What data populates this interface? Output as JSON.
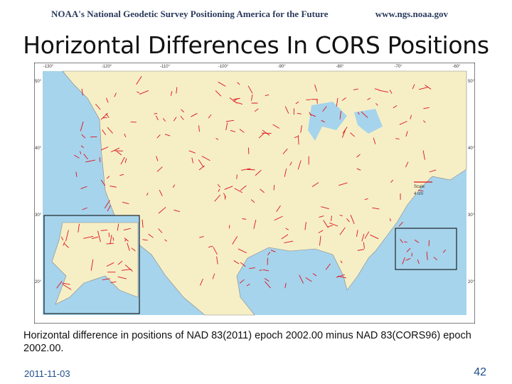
{
  "header": {
    "left": "NOAA's National Geodetic Survey Positioning America for the Future",
    "right": "www.ngs.noaa.gov"
  },
  "title": "Horizontal Differences In CORS Positions",
  "map": {
    "top_labels": [
      "-130°",
      "-120°",
      "-110°",
      "-100°",
      "-90°",
      "-80°",
      "-70°",
      "-60°"
    ],
    "left_labels": [
      "50°",
      "40°",
      "30°",
      "20°"
    ],
    "right_labels": [
      "50°",
      "40°",
      "30°",
      "20°"
    ],
    "scale": {
      "title": "Scale",
      "length": "4 cm"
    }
  },
  "caption": "Horizontal difference in positions of NAD 83(2011) epoch 2002.00 minus NAD 83(CORS96) epoch 2002.00.",
  "footer": {
    "date": "2011-11-03",
    "page": "42"
  }
}
